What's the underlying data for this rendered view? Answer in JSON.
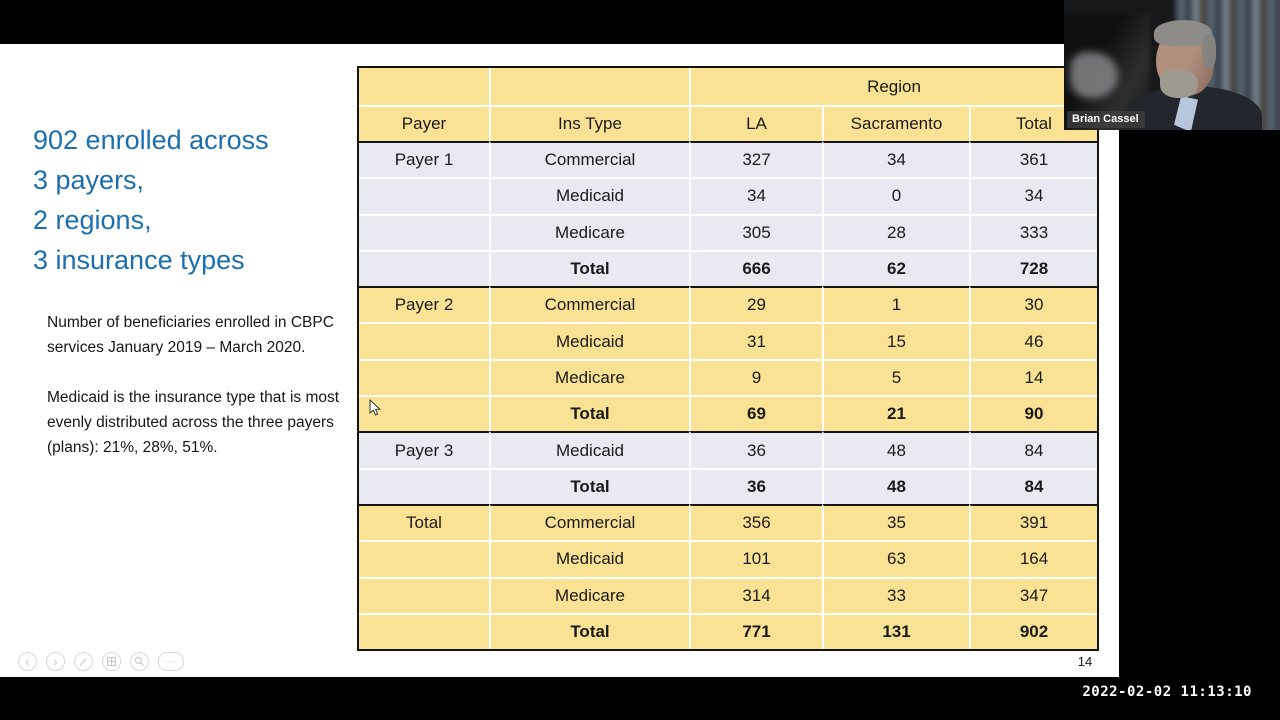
{
  "slide": {
    "title_lines": [
      "902 enrolled across",
      "3 payers,",
      "2 regions,",
      "3 insurance types"
    ],
    "body_paragraphs": [
      "Number of beneficiaries enrolled in CBPC services January 2019 – March 2020.",
      "Medicaid is the insurance type that is most evenly distributed across the three payers (plans):  21%, 28%, 51%."
    ],
    "page_number": "14",
    "title_color": "#1c6fae"
  },
  "table": {
    "region_label": "Region",
    "columns": [
      "Payer",
      "Ins Type",
      "LA",
      "Sacramento",
      "Total"
    ],
    "rows": [
      {
        "cells": [
          "Payer 1",
          "Commercial",
          "327",
          "34",
          "361"
        ],
        "bg": "lav",
        "bold": false,
        "sep": true
      },
      {
        "cells": [
          "",
          "Medicaid",
          "34",
          "0",
          "34"
        ],
        "bg": "lav",
        "bold": false,
        "sep": false
      },
      {
        "cells": [
          "",
          "Medicare",
          "305",
          "28",
          "333"
        ],
        "bg": "lav",
        "bold": false,
        "sep": false
      },
      {
        "cells": [
          "",
          "Total",
          "666",
          "62",
          "728"
        ],
        "bg": "lav",
        "bold": true,
        "sep": false
      },
      {
        "cells": [
          "Payer 2",
          "Commercial",
          "29",
          "1",
          "30"
        ],
        "bg": "yel",
        "bold": false,
        "sep": true
      },
      {
        "cells": [
          "",
          "Medicaid",
          "31",
          "15",
          "46"
        ],
        "bg": "yel",
        "bold": false,
        "sep": false
      },
      {
        "cells": [
          "",
          "Medicare",
          "9",
          "5",
          "14"
        ],
        "bg": "yel",
        "bold": false,
        "sep": false
      },
      {
        "cells": [
          "",
          "Total",
          "69",
          "21",
          "90"
        ],
        "bg": "yel",
        "bold": true,
        "sep": false
      },
      {
        "cells": [
          "Payer 3",
          "Medicaid",
          "36",
          "48",
          "84"
        ],
        "bg": "lav",
        "bold": false,
        "sep": true
      },
      {
        "cells": [
          "",
          "Total",
          "36",
          "48",
          "84"
        ],
        "bg": "lav",
        "bold": true,
        "sep": false
      },
      {
        "cells": [
          "Total",
          "Commercial",
          "356",
          "35",
          "391"
        ],
        "bg": "yel",
        "bold": false,
        "sep": true
      },
      {
        "cells": [
          "",
          "Medicaid",
          "101",
          "63",
          "164"
        ],
        "bg": "yel",
        "bold": false,
        "sep": false
      },
      {
        "cells": [
          "",
          "Medicare",
          "314",
          "33",
          "347"
        ],
        "bg": "yel",
        "bold": false,
        "sep": false
      },
      {
        "cells": [
          "",
          "Total",
          "771",
          "131",
          "902"
        ],
        "bg": "yel",
        "bold": true,
        "sep": false
      }
    ],
    "colors": {
      "yellow": "#fae294",
      "lavender": "#e9e9f1",
      "border": "#141414"
    }
  },
  "controls": {
    "prev_glyph": "‹",
    "next_glyph": "›",
    "more_glyph": "···",
    "icon_names": [
      "previous-slide",
      "next-slide",
      "pen",
      "all-slides",
      "zoom",
      "more-options"
    ]
  },
  "webcam": {
    "name_label": "Brian Cassel"
  },
  "status_bar": {
    "timestamp": "2022-02-02 11:13:10"
  }
}
